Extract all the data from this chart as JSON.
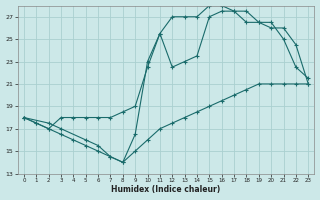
{
  "xlabel": "Humidex (Indice chaleur)",
  "background_color": "#cce8e8",
  "grid_color": "#aad0d0",
  "line_color": "#1a6b6b",
  "xlim": [
    -0.5,
    23.5
  ],
  "ylim": [
    13,
    28
  ],
  "yticks": [
    13,
    15,
    17,
    19,
    21,
    23,
    25,
    27
  ],
  "xticks": [
    0,
    1,
    2,
    3,
    4,
    5,
    6,
    7,
    8,
    9,
    10,
    11,
    12,
    13,
    14,
    15,
    16,
    17,
    18,
    19,
    20,
    21,
    22,
    23
  ],
  "line1_x": [
    0,
    1,
    2,
    3,
    4,
    5,
    6,
    7,
    8,
    9,
    10,
    11,
    12,
    13,
    14,
    15,
    16,
    17,
    18,
    19,
    20,
    21,
    22,
    23
  ],
  "line1_y": [
    18,
    17.5,
    17.0,
    16.5,
    16.0,
    15.5,
    15.0,
    14.5,
    14.0,
    15.0,
    16.0,
    17.0,
    17.5,
    18.0,
    18.5,
    19.0,
    19.5,
    20.0,
    20.5,
    21.0,
    21.0,
    21.0,
    21.0,
    21.0
  ],
  "line2_x": [
    0,
    2,
    3,
    5,
    6,
    7,
    8,
    9,
    10,
    11,
    12,
    13,
    14,
    15,
    16,
    17,
    18,
    19,
    20,
    21,
    22,
    23
  ],
  "line2_y": [
    18,
    17.5,
    17.0,
    16.0,
    15.5,
    14.5,
    14.0,
    16.5,
    23.0,
    25.5,
    22.5,
    23.0,
    23.5,
    27.0,
    27.5,
    27.5,
    26.5,
    26.5,
    26.0,
    26.0,
    24.5,
    21.0
  ],
  "line3_x": [
    0,
    1,
    2,
    3,
    4,
    5,
    6,
    7,
    8,
    9,
    10,
    11,
    12,
    13,
    14,
    15,
    16,
    17,
    18,
    19,
    20,
    21,
    22,
    23
  ],
  "line3_y": [
    18,
    17.5,
    17.0,
    18.0,
    18.0,
    18.0,
    18.0,
    18.0,
    18.5,
    19.0,
    22.5,
    25.5,
    27.0,
    27.0,
    27.0,
    28.0,
    28.0,
    27.5,
    27.5,
    26.5,
    26.5,
    25.0,
    22.5,
    21.5
  ]
}
